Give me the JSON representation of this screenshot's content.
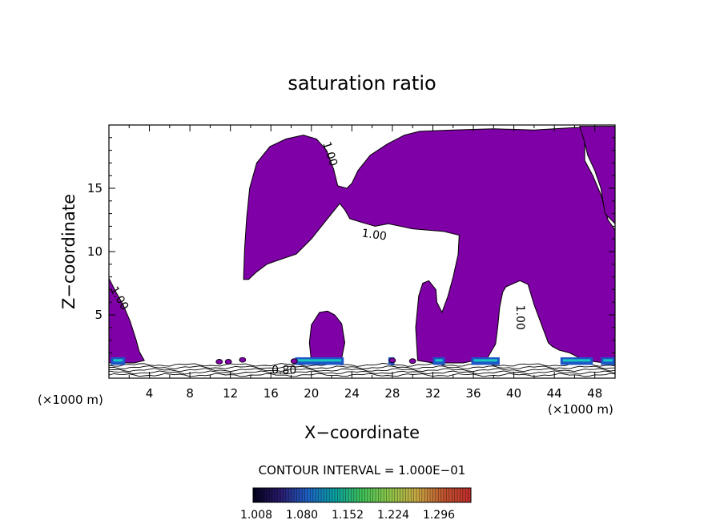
{
  "chart_data": {
    "type": "contour",
    "title": "saturation ratio",
    "xlabel": "X−coordinate",
    "ylabel": "Z−coordinate",
    "x_unit": "(×1000 m)",
    "y_unit": "(×1000 m)",
    "xlim": [
      0,
      50
    ],
    "ylim": [
      0,
      20
    ],
    "x_ticks": [
      4,
      8,
      12,
      16,
      20,
      24,
      28,
      32,
      36,
      40,
      44,
      48
    ],
    "x_tick_labels": [
      "4",
      "8",
      "12",
      "16",
      "20",
      "24",
      "28",
      "32",
      "36",
      "40",
      "44",
      "48"
    ],
    "y_ticks": [
      5,
      10,
      15
    ],
    "y_tick_labels": [
      "5",
      "10",
      "15"
    ],
    "contour_interval_text": "CONTOUR INTERVAL = 1.000E−01",
    "contour_labels": [
      {
        "text": "1.00",
        "x": 21.8,
        "y": 17.7,
        "angle": 72
      },
      {
        "text": "1.00",
        "x": 26.2,
        "y": 11.3,
        "angle": 8
      },
      {
        "text": "1.00",
        "x": 40.6,
        "y": 4.8,
        "angle": 90
      },
      {
        "text": "1.00",
        "x": 1.0,
        "y": 6.3,
        "angle": 60
      },
      {
        "text": "0.80",
        "x": 17.3,
        "y": 0.6,
        "angle": 0
      }
    ],
    "shaded_regions": [
      {
        "name": "saturated-region-upper-left",
        "level": ">=1.00",
        "outline": [
          [
            13.3,
            7.8
          ],
          [
            13.4,
            10.2
          ],
          [
            13.6,
            12.6
          ],
          [
            13.9,
            15.0
          ],
          [
            14.6,
            17.0
          ],
          [
            15.9,
            18.3
          ],
          [
            17.5,
            18.9
          ],
          [
            19.2,
            19.2
          ],
          [
            20.5,
            18.9
          ],
          [
            21.5,
            18.0
          ],
          [
            22.2,
            16.5
          ],
          [
            22.6,
            15.2
          ],
          [
            23.5,
            15.0
          ],
          [
            24.0,
            15.4
          ],
          [
            24.6,
            16.4
          ],
          [
            25.8,
            17.6
          ],
          [
            27.5,
            18.5
          ],
          [
            29.2,
            19.2
          ],
          [
            30.7,
            19.5
          ],
          [
            34.0,
            19.6
          ],
          [
            38.0,
            19.7
          ],
          [
            42.0,
            19.6
          ],
          [
            46.0,
            19.8
          ],
          [
            48.0,
            19.8
          ],
          [
            47.0,
            18.8
          ],
          [
            47.0,
            17.2
          ],
          [
            47.8,
            16.0
          ],
          [
            48.6,
            14.5
          ],
          [
            49.3,
            12.5
          ],
          [
            50.0,
            11.7
          ],
          [
            50.0,
            1.2
          ],
          [
            49.0,
            1.2
          ],
          [
            47.0,
            1.4
          ],
          [
            45.5,
            2.0
          ],
          [
            44.5,
            2.2
          ],
          [
            43.8,
            2.5
          ],
          [
            43.4,
            2.8
          ],
          [
            42.0,
            5.8
          ],
          [
            41.4,
            7.4
          ],
          [
            40.6,
            7.7
          ],
          [
            39.2,
            7.2
          ],
          [
            38.9,
            6.8
          ],
          [
            38.6,
            5.6
          ],
          [
            38.4,
            4.0
          ],
          [
            38.2,
            2.7
          ],
          [
            37.4,
            1.6
          ],
          [
            35.0,
            1.2
          ],
          [
            32.0,
            1.2
          ],
          [
            30.5,
            1.4
          ],
          [
            30.3,
            4.0
          ],
          [
            30.6,
            6.5
          ],
          [
            31.0,
            7.5
          ],
          [
            31.6,
            7.7
          ],
          [
            32.3,
            7.0
          ],
          [
            32.4,
            6.0
          ],
          [
            32.9,
            5.2
          ],
          [
            33.5,
            6.5
          ],
          [
            34.0,
            8.0
          ],
          [
            34.5,
            9.8
          ],
          [
            34.6,
            11.3
          ],
          [
            33.0,
            11.6
          ],
          [
            30.0,
            11.8
          ],
          [
            27.6,
            12.2
          ],
          [
            26.3,
            12.0
          ],
          [
            25.0,
            12.3
          ],
          [
            23.8,
            12.6
          ],
          [
            23.3,
            13.3
          ],
          [
            22.8,
            13.8
          ],
          [
            22.1,
            13.1
          ],
          [
            21.2,
            12.2
          ],
          [
            20.0,
            11.0
          ],
          [
            18.5,
            9.8
          ],
          [
            17.0,
            9.4
          ],
          [
            15.6,
            9.0
          ],
          [
            14.6,
            8.4
          ],
          [
            13.8,
            7.8
          ]
        ]
      },
      {
        "name": "saturated-region-center-bubble",
        "level": ">=1.00",
        "outline": [
          [
            20.0,
            1.3
          ],
          [
            19.8,
            2.8
          ],
          [
            20.0,
            4.2
          ],
          [
            20.8,
            5.2
          ],
          [
            21.6,
            5.3
          ],
          [
            22.3,
            5.0
          ],
          [
            23.0,
            4.3
          ],
          [
            23.3,
            2.8
          ],
          [
            23.0,
            1.6
          ],
          [
            22.2,
            1.3
          ]
        ]
      },
      {
        "name": "saturated-region-left-edge",
        "level": ">=1.00",
        "outline": [
          [
            0.0,
            1.2
          ],
          [
            0.0,
            7.9
          ],
          [
            0.7,
            6.8
          ],
          [
            1.4,
            5.8
          ],
          [
            2.1,
            4.5
          ],
          [
            2.7,
            3.0
          ],
          [
            3.0,
            2.1
          ],
          [
            3.5,
            1.4
          ],
          [
            2.5,
            1.2
          ],
          [
            1.0,
            1.2
          ]
        ]
      },
      {
        "name": "saturated-region-right-upper-edge",
        "level": ">=1.00",
        "outline": [
          [
            46.5,
            19.9
          ],
          [
            50.0,
            19.9
          ],
          [
            50.0,
            12.2
          ],
          [
            49.0,
            13.0
          ],
          [
            48.6,
            15.0
          ],
          [
            48.0,
            16.4
          ],
          [
            47.3,
            17.6
          ],
          [
            46.9,
            18.9
          ]
        ]
      }
    ],
    "colorbar": {
      "min": 1.008,
      "max": 1.296,
      "tick_values": [
        1.008,
        1.08,
        1.152,
        1.224,
        1.296
      ],
      "tick_labels": [
        "1.008",
        "1.080",
        "1.152",
        "1.224",
        "1.296"
      ],
      "colors": [
        "#00001a",
        "#2a1a6c",
        "#1d5fc4",
        "#0aa0a0",
        "#3fc058",
        "#8ec64a",
        "#c6a843",
        "#c0542f",
        "#c02c2c"
      ]
    },
    "fill_color": "#7f00a6"
  }
}
